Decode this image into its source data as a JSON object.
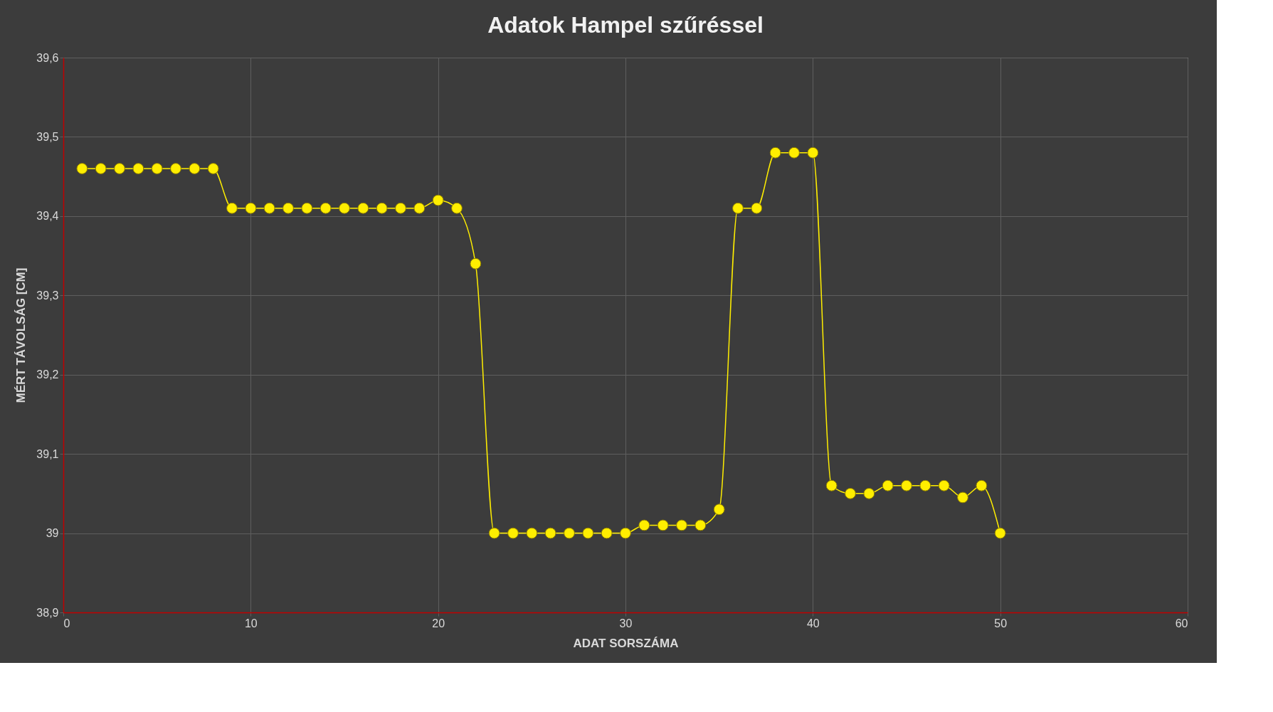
{
  "chart_data": {
    "type": "line",
    "title": "Adatok Hampel szűréssel",
    "xlabel": "ADAT SORSZÁMA",
    "ylabel": "MÉRT TÁVOLSÁG [CM]",
    "x": [
      1,
      2,
      3,
      4,
      5,
      6,
      7,
      8,
      9,
      10,
      11,
      12,
      13,
      14,
      15,
      16,
      17,
      18,
      19,
      20,
      21,
      22,
      23,
      24,
      25,
      26,
      27,
      28,
      29,
      30,
      31,
      32,
      33,
      34,
      35,
      36,
      37,
      38,
      39,
      40,
      41,
      42,
      43,
      44,
      45,
      46,
      47,
      48,
      49,
      50
    ],
    "series": [
      {
        "color": "#ffee00",
        "values": [
          39.46,
          39.46,
          39.46,
          39.46,
          39.46,
          39.46,
          39.46,
          39.46,
          39.41,
          39.41,
          39.41,
          39.41,
          39.41,
          39.41,
          39.41,
          39.41,
          39.41,
          39.41,
          39.41,
          39.42,
          39.41,
          39.34,
          39.0,
          39.0,
          39.0,
          39.0,
          39.0,
          39.0,
          39.0,
          39.0,
          39.01,
          39.01,
          39.01,
          39.01,
          39.03,
          39.41,
          39.41,
          39.48,
          39.48,
          39.48,
          39.06,
          39.05,
          39.05,
          39.06,
          39.06,
          39.06,
          39.06,
          39.045,
          39.06,
          39.0
        ]
      }
    ],
    "xlim": [
      0,
      60
    ],
    "xticks": [
      0,
      10,
      20,
      30,
      40,
      50,
      60
    ],
    "ylim": [
      38.9,
      39.6
    ],
    "yticks": [
      {
        "value": 38.9,
        "label": "38,9"
      },
      {
        "value": 39.0,
        "label": "39"
      },
      {
        "value": 39.1,
        "label": "39,1"
      },
      {
        "value": 39.2,
        "label": "39,2"
      },
      {
        "value": 39.3,
        "label": "39,3"
      },
      {
        "value": 39.4,
        "label": "39,4"
      },
      {
        "value": 39.5,
        "label": "39,5"
      },
      {
        "value": 39.6,
        "label": "39,6"
      }
    ],
    "grid": true,
    "marker": "circle",
    "line_style": "solid"
  }
}
